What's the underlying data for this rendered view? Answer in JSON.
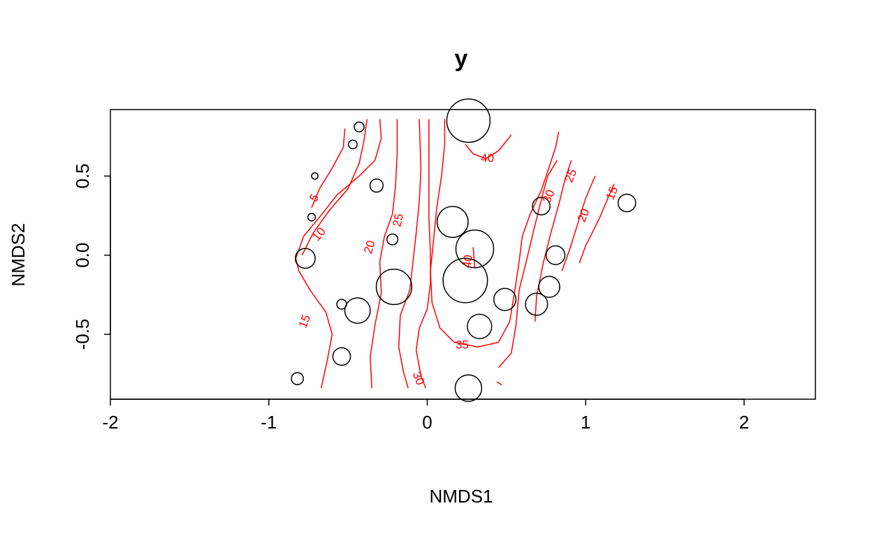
{
  "chart_data": {
    "type": "scatter",
    "title": "y",
    "xlabel": "NMDS1",
    "ylabel": "NMDS2",
    "xlim": [
      -2,
      2.45
    ],
    "ylim": [
      -0.91,
      0.92
    ],
    "x_ticks": [
      -2,
      -1,
      0,
      1,
      2
    ],
    "x_tick_labels": [
      "-2",
      "-1",
      "0",
      "1",
      "2"
    ],
    "y_ticks": [
      -0.5,
      0.0,
      0.5
    ],
    "y_tick_labels": [
      "-0.5",
      "0.0",
      "0.5"
    ],
    "grid": false,
    "point_color": "#000000",
    "contour_color": "#ff0000",
    "sites": [
      {
        "x": 0.26,
        "y": 0.85,
        "size": 35
      },
      {
        "x": -0.43,
        "y": 0.81,
        "size": 5
      },
      {
        "x": -0.47,
        "y": 0.7,
        "size": 4
      },
      {
        "x": -0.71,
        "y": 0.5,
        "size": 2
      },
      {
        "x": -0.73,
        "y": 0.24,
        "size": 3
      },
      {
        "x": -0.32,
        "y": 0.44,
        "size": 8
      },
      {
        "x": -0.22,
        "y": 0.1,
        "size": 6
      },
      {
        "x": -0.77,
        "y": -0.02,
        "size": 14
      },
      {
        "x": 0.16,
        "y": 0.21,
        "size": 24
      },
      {
        "x": 0.3,
        "y": 0.04,
        "size": 30
      },
      {
        "x": 0.24,
        "y": -0.16,
        "size": 36
      },
      {
        "x": -0.21,
        "y": -0.2,
        "size": 28
      },
      {
        "x": -0.44,
        "y": -0.35,
        "size": 19
      },
      {
        "x": -0.54,
        "y": -0.31,
        "size": 5
      },
      {
        "x": 0.33,
        "y": -0.45,
        "size": 18
      },
      {
        "x": 0.49,
        "y": -0.28,
        "size": 16
      },
      {
        "x": 0.69,
        "y": -0.31,
        "size": 16
      },
      {
        "x": 0.77,
        "y": -0.2,
        "size": 15
      },
      {
        "x": 0.81,
        "y": 0.0,
        "size": 13
      },
      {
        "x": 0.72,
        "y": 0.31,
        "size": 12
      },
      {
        "x": 1.26,
        "y": 0.33,
        "size": 12
      },
      {
        "x": -0.54,
        "y": -0.64,
        "size": 12
      },
      {
        "x": -0.82,
        "y": -0.78,
        "size": 7
      },
      {
        "x": 0.26,
        "y": -0.84,
        "size": 20
      }
    ],
    "contours": [
      {
        "level": "5",
        "points": [
          [
            -0.73,
            0.3
          ],
          [
            -0.68,
            0.42
          ],
          [
            -0.6,
            0.55
          ],
          [
            -0.53,
            0.68
          ],
          [
            -0.52,
            0.8
          ]
        ]
      },
      {
        "level": "10",
        "points": [
          [
            -0.79,
            0.0
          ],
          [
            -0.72,
            0.14
          ],
          [
            -0.62,
            0.28
          ],
          [
            -0.5,
            0.42
          ],
          [
            -0.43,
            0.58
          ],
          [
            -0.4,
            0.72
          ],
          [
            -0.38,
            0.86
          ]
        ]
      },
      {
        "level": "15",
        "points": [
          [
            -0.67,
            -0.84
          ],
          [
            -0.63,
            -0.66
          ],
          [
            -0.6,
            -0.5
          ],
          [
            -0.64,
            -0.36
          ],
          [
            -0.74,
            -0.22
          ],
          [
            -0.81,
            -0.1
          ],
          [
            -0.83,
            -0.02
          ],
          [
            -0.78,
            0.12
          ],
          [
            -0.68,
            0.24
          ],
          [
            -0.57,
            0.38
          ],
          [
            -0.43,
            0.5
          ],
          [
            -0.33,
            0.6
          ],
          [
            -0.29,
            0.74
          ],
          [
            -0.3,
            0.86
          ]
        ]
      },
      {
        "level": "20",
        "points": [
          [
            -0.35,
            -0.84
          ],
          [
            -0.36,
            -0.64
          ],
          [
            -0.33,
            -0.44
          ],
          [
            -0.29,
            -0.24
          ],
          [
            -0.3,
            -0.04
          ],
          [
            -0.27,
            0.12
          ],
          [
            -0.22,
            0.26
          ],
          [
            -0.2,
            0.44
          ],
          [
            -0.19,
            0.64
          ],
          [
            -0.19,
            0.86
          ]
        ]
      },
      {
        "level": "25",
        "points": [
          [
            -0.12,
            -0.84
          ],
          [
            -0.15,
            -0.74
          ],
          [
            -0.18,
            -0.58
          ],
          [
            -0.17,
            -0.38
          ],
          [
            -0.11,
            -0.22
          ],
          [
            -0.09,
            -0.04
          ],
          [
            -0.07,
            0.14
          ],
          [
            -0.05,
            0.34
          ],
          [
            -0.04,
            0.54
          ],
          [
            -0.05,
            0.86
          ]
        ]
      },
      {
        "level": "30",
        "points": [
          [
            -0.01,
            -0.84
          ],
          [
            -0.04,
            -0.76
          ],
          [
            -0.07,
            -0.6
          ],
          [
            -0.05,
            -0.46
          ],
          [
            0.0,
            -0.34
          ],
          [
            0.02,
            -0.18
          ],
          [
            0.02,
            0.02
          ],
          [
            0.01,
            0.24
          ],
          [
            0.01,
            0.5
          ],
          [
            0.01,
            0.86
          ]
        ]
      },
      {
        "level": "35",
        "points": [
          [
            0.11,
            0.86
          ],
          [
            0.11,
            0.7
          ],
          [
            0.09,
            0.5
          ],
          [
            0.06,
            0.3
          ],
          [
            0.04,
            0.1
          ],
          [
            0.02,
            -0.1
          ],
          [
            0.03,
            -0.3
          ],
          [
            0.08,
            -0.46
          ],
          [
            0.17,
            -0.55
          ],
          [
            0.32,
            -0.58
          ],
          [
            0.45,
            -0.55
          ],
          [
            0.52,
            -0.42
          ],
          [
            0.55,
            -0.24
          ],
          [
            0.58,
            -0.04
          ],
          [
            0.6,
            0.12
          ],
          [
            0.65,
            0.26
          ],
          [
            0.72,
            0.41
          ],
          [
            0.77,
            0.56
          ],
          [
            0.81,
            0.68
          ],
          [
            0.83,
            0.78
          ]
        ]
      },
      {
        "level": "40",
        "points": [
          [
            0.29,
            0.05
          ],
          [
            0.3,
            -0.08
          ]
        ]
      },
      {
        "level": "40",
        "points": [
          [
            0.24,
            0.7
          ],
          [
            0.29,
            0.64
          ],
          [
            0.37,
            0.61
          ],
          [
            0.45,
            0.66
          ],
          [
            0.53,
            0.76
          ]
        ]
      },
      {
        "level": "30",
        "points": [
          [
            0.45,
            -0.71
          ],
          [
            0.53,
            -0.62
          ],
          [
            0.56,
            -0.44
          ],
          [
            0.58,
            -0.22
          ],
          [
            0.63,
            -0.02
          ],
          [
            0.67,
            0.15
          ],
          [
            0.72,
            0.35
          ],
          [
            0.76,
            0.5
          ],
          [
            0.82,
            0.6
          ]
        ]
      },
      {
        "level": "25",
        "points": [
          [
            0.68,
            -0.42
          ],
          [
            0.69,
            -0.26
          ],
          [
            0.73,
            -0.06
          ],
          [
            0.78,
            0.14
          ],
          [
            0.83,
            0.32
          ],
          [
            0.87,
            0.48
          ],
          [
            0.91,
            0.6
          ]
        ]
      },
      {
        "level": "20",
        "points": [
          [
            0.96,
            -0.05
          ],
          [
            1.0,
            0.06
          ],
          [
            1.04,
            0.14
          ],
          [
            1.09,
            0.24
          ],
          [
            1.14,
            0.36
          ],
          [
            1.18,
            0.45
          ]
        ]
      },
      {
        "level": "15",
        "points": [
          [
            0.85,
            -0.1
          ],
          [
            0.9,
            0.04
          ],
          [
            0.95,
            0.2
          ],
          [
            1.0,
            0.36
          ],
          [
            1.06,
            0.5
          ]
        ]
      },
      {
        "level": "40",
        "points": [
          [
            0.44,
            -0.8
          ],
          [
            0.47,
            -0.82
          ]
        ]
      }
    ],
    "contour_labels": [
      {
        "text": "5",
        "x": -0.71,
        "y": 0.36,
        "angle": -58
      },
      {
        "text": "10",
        "x": -0.68,
        "y": 0.13,
        "angle": -50
      },
      {
        "text": "15",
        "x": -0.77,
        "y": -0.42,
        "angle": -68
      },
      {
        "text": "20",
        "x": -0.36,
        "y": 0.05,
        "angle": -72
      },
      {
        "text": "25",
        "x": -0.18,
        "y": 0.22,
        "angle": -78
      },
      {
        "text": "30",
        "x": -0.06,
        "y": -0.78,
        "angle": 68
      },
      {
        "text": "35",
        "x": 0.22,
        "y": -0.57,
        "angle": 0
      },
      {
        "text": "40",
        "x": 0.26,
        "y": -0.04,
        "angle": -80
      },
      {
        "text": "40",
        "x": 0.38,
        "y": 0.61,
        "angle": 0
      },
      {
        "text": "30",
        "x": 0.77,
        "y": 0.37,
        "angle": -68
      },
      {
        "text": "25",
        "x": 0.91,
        "y": 0.5,
        "angle": -68
      },
      {
        "text": "20",
        "x": 0.99,
        "y": 0.25,
        "angle": -68
      },
      {
        "text": "15",
        "x": 1.17,
        "y": 0.39,
        "angle": -68
      }
    ]
  }
}
